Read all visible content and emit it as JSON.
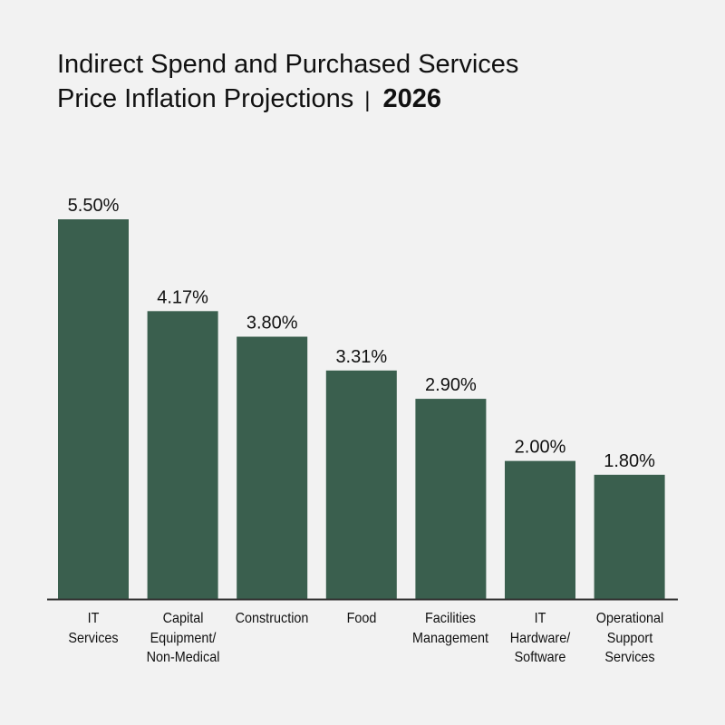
{
  "chart_data": {
    "type": "bar",
    "title_line1": "Indirect Spend and Purchased Services",
    "title_line2": "Price Inflation Projections",
    "title_separator": "|",
    "title_year": "2026",
    "categories": [
      [
        "IT",
        "Services"
      ],
      [
        "Capital",
        "Equipment/",
        "Non-Medical"
      ],
      [
        "Construction"
      ],
      [
        "Food"
      ],
      [
        "Facilities",
        "Management"
      ],
      [
        "IT",
        "Hardware/",
        "Software"
      ],
      [
        "Operational",
        "Support",
        "Services"
      ]
    ],
    "values": [
      5.5,
      4.17,
      3.8,
      3.31,
      2.9,
      2.0,
      1.8
    ],
    "data_labels": [
      "5.50%",
      "4.17%",
      "3.80%",
      "3.31%",
      "2.90%",
      "2.00%",
      "1.80%"
    ],
    "ylim": [
      0,
      5.5
    ],
    "grid": false,
    "bar_color": "#3a5f4e",
    "axis_color": "#333333"
  }
}
